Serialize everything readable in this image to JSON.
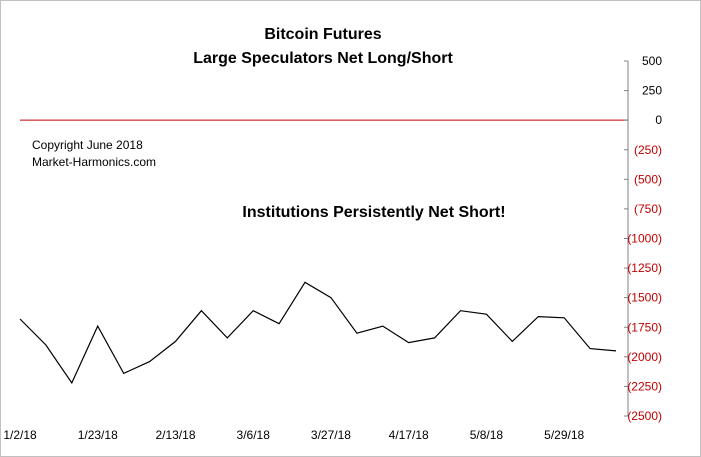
{
  "chart_data": {
    "type": "line",
    "title": [
      "Bitcoin Futures",
      "Large Speculators Net Long/Short"
    ],
    "annotations": [
      "Copyright June 2018",
      "Market-Harmonics.com",
      "Institutions Persistently Net Short!"
    ],
    "ylim": [
      -2500,
      500
    ],
    "y_ticks": [
      500,
      250,
      0,
      -250,
      -500,
      -750,
      -1000,
      -1250,
      -1500,
      -1750,
      -2000,
      -2250,
      -2500
    ],
    "y_tick_labels": [
      "500",
      "250",
      "0",
      "(250)",
      "(500)",
      "(750)",
      "(1000)",
      "(1250)",
      "(1500)",
      "(1750)",
      "(2000)",
      "(2250)",
      "(2500)"
    ],
    "y_axis_position": "right",
    "x_tick_labels": [
      "1/2/18",
      "1/23/18",
      "2/13/18",
      "3/6/18",
      "3/27/18",
      "4/17/18",
      "5/8/18",
      "5/29/18"
    ],
    "zero_line_color": "#c00000",
    "negative_label_color": "#c00000",
    "line_color": "#000000",
    "grid": false,
    "series": [
      {
        "x": [
          "1/2/18",
          "1/9/18",
          "1/16/18",
          "1/23/18",
          "1/30/18",
          "2/6/18",
          "2/13/18",
          "2/20/18",
          "2/27/18",
          "3/6/18",
          "3/13/18",
          "3/20/18",
          "3/27/18",
          "4/3/18",
          "4/10/18",
          "4/17/18",
          "4/24/18",
          "5/1/18",
          "5/8/18",
          "5/15/18",
          "5/22/18",
          "5/29/18",
          "6/5/18",
          "6/12/18"
        ],
        "values": [
          -1680,
          -1900,
          -2220,
          -1740,
          -2140,
          -2040,
          -1870,
          -1610,
          -1840,
          -1610,
          -1720,
          -1370,
          -1500,
          -1800,
          -1740,
          -1880,
          -1840,
          -1610,
          -1640,
          -1870,
          -1660,
          -1670,
          -1930,
          -1950
        ]
      }
    ]
  }
}
